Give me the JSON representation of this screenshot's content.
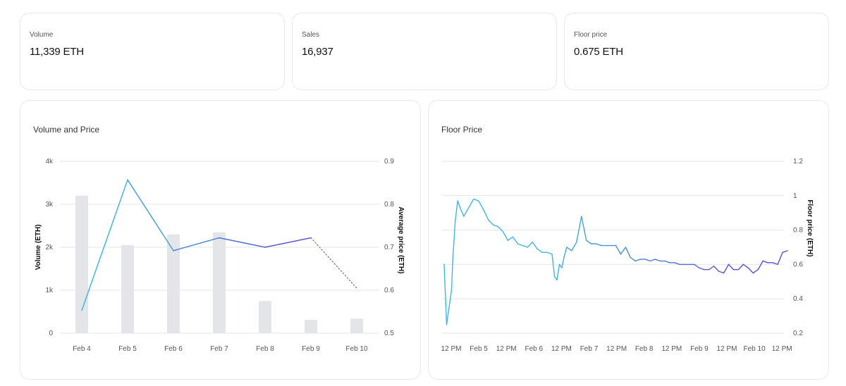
{
  "stats": [
    {
      "label": "Volume",
      "value": "11,339 ETH"
    },
    {
      "label": "Sales",
      "value": "16,937"
    },
    {
      "label": "Floor price",
      "value": "0.675 ETH"
    }
  ],
  "colors": {
    "bar": "#e3e5e8",
    "line_start": "#3fb7e0",
    "line_end": "#5b4fcf",
    "grid": "#e6e6e6",
    "dotted": "#8a6060"
  },
  "chart_data": [
    {
      "type": "bar",
      "title": "Volume and Price",
      "categories": [
        "Feb 4",
        "Feb 5",
        "Feb 6",
        "Feb 7",
        "Feb 8",
        "Feb 9",
        "Feb 10"
      ],
      "ylabel": "Volume (ETH)",
      "ylabel2": "Average price (ETH)",
      "ylim": [
        0,
        4000
      ],
      "ylim2": [
        0.5,
        0.9
      ],
      "y_ticks": [
        {
          "value": 0,
          "label": "0"
        },
        {
          "value": 1000,
          "label": "1k"
        },
        {
          "value": 2000,
          "label": "2k"
        },
        {
          "value": 3000,
          "label": "3k"
        },
        {
          "value": 4000,
          "label": "4k"
        }
      ],
      "y2_ticks": [
        {
          "value": 0.5,
          "label": "0.5"
        },
        {
          "value": 0.6,
          "label": "0.6"
        },
        {
          "value": 0.7,
          "label": "0.7"
        },
        {
          "value": 0.8,
          "label": "0.8"
        },
        {
          "value": 0.9,
          "label": "0.9"
        }
      ],
      "grid": true,
      "series": [
        {
          "type": "bar",
          "values": [
            3200,
            2050,
            2300,
            2350,
            750,
            310,
            340
          ]
        },
        {
          "type": "line",
          "values": [
            0.553,
            0.857,
            0.692,
            0.722,
            0.7,
            0.722,
            0.605
          ]
        }
      ]
    },
    {
      "type": "line",
      "title": "Floor Price",
      "ylabel": "Floor price (ETH)",
      "ylim": [
        0.2,
        1.2
      ],
      "y_ticks": [
        "0.2",
        "0.4",
        "0.6",
        "0.8",
        "1",
        "1.2"
      ],
      "x_ticks": [
        "12 PM",
        "Feb 5",
        "12 PM",
        "Feb 6",
        "12 PM",
        "Feb 7",
        "12 PM",
        "Feb 8",
        "12 PM",
        "Feb 9",
        "12 PM",
        "Feb 10",
        "12 PM"
      ],
      "grid": true,
      "series": [
        {
          "x": [
            0,
            0.1,
            0.2,
            0.3,
            0.35,
            0.45,
            0.55,
            0.65,
            0.8,
            1.0,
            1.2,
            1.4,
            1.6,
            1.8,
            2.0,
            2.2,
            2.4,
            2.6,
            2.8,
            3.0,
            3.2,
            3.4,
            3.6,
            3.8,
            4.0,
            4.2,
            4.4,
            4.5,
            4.6,
            4.7,
            4.8,
            4.9,
            5.0,
            5.2,
            5.4,
            5.6,
            5.8,
            6.0,
            6.2,
            6.4,
            6.6,
            6.8,
            7.0,
            7.2,
            7.4,
            7.6,
            7.8,
            8.0,
            8.2,
            8.4,
            8.6,
            8.8,
            9.0,
            9.2,
            9.4,
            9.6,
            9.8,
            10.0,
            10.2,
            10.4,
            10.6,
            10.8,
            11.0,
            11.2,
            11.4,
            11.6,
            11.8,
            12.0,
            12.2,
            12.4,
            12.6,
            12.8,
            13.0,
            13.2,
            13.4,
            13.6,
            13.8,
            14.0
          ],
          "values": [
            0.6,
            0.25,
            0.35,
            0.45,
            0.62,
            0.85,
            0.97,
            0.93,
            0.88,
            0.93,
            0.98,
            0.97,
            0.92,
            0.86,
            0.83,
            0.82,
            0.79,
            0.74,
            0.76,
            0.72,
            0.71,
            0.7,
            0.73,
            0.69,
            0.67,
            0.67,
            0.66,
            0.53,
            0.51,
            0.6,
            0.58,
            0.65,
            0.7,
            0.68,
            0.73,
            0.88,
            0.74,
            0.72,
            0.72,
            0.71,
            0.71,
            0.71,
            0.71,
            0.66,
            0.7,
            0.64,
            0.62,
            0.63,
            0.63,
            0.62,
            0.63,
            0.62,
            0.62,
            0.61,
            0.61,
            0.6,
            0.6,
            0.6,
            0.6,
            0.58,
            0.57,
            0.57,
            0.59,
            0.56,
            0.55,
            0.6,
            0.57,
            0.57,
            0.6,
            0.58,
            0.55,
            0.57,
            0.62,
            0.61,
            0.61,
            0.6,
            0.67,
            0.68
          ]
        }
      ]
    }
  ]
}
